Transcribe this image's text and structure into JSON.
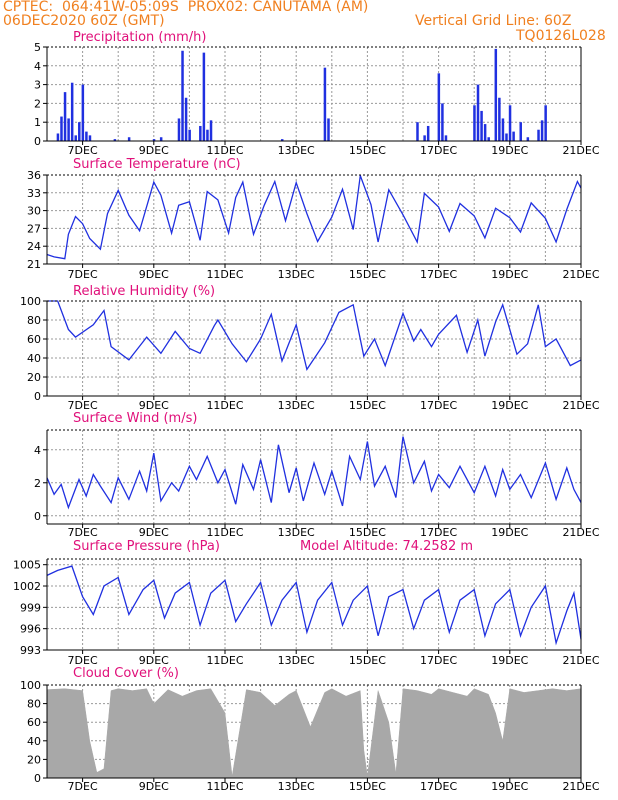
{
  "header": {
    "line1": "CPTEC:  064:41W-05:09S  PROX02: CANUTAMA (AM)",
    "line2": "06DEC2020 60Z (GMT)",
    "grid_note": "Vertical Grid Line: 60Z",
    "code": "TQ0126L028"
  },
  "colors": {
    "header": "#f08020",
    "title": "#e0107a",
    "series": "#2030e0",
    "cloud": "#a8a8a8",
    "grid": "#999999"
  },
  "x_ticks": [
    "7DEC",
    "9DEC",
    "11DEC",
    "13DEC",
    "15DEC",
    "17DEC",
    "19DEC",
    "21DEC"
  ],
  "chart_data": [
    {
      "type": "bar",
      "title": "Precipitation (mm/h)",
      "x_range_days": [
        6.0,
        21.0
      ],
      "ylim": [
        0,
        5
      ],
      "yticks": [
        0,
        1,
        2,
        3,
        4,
        5
      ],
      "x": [
        6.3,
        6.4,
        6.5,
        6.6,
        6.7,
        6.8,
        6.9,
        7.0,
        7.1,
        7.2,
        7.9,
        8.3,
        9.0,
        9.2,
        9.7,
        9.8,
        9.9,
        10.0,
        10.3,
        10.4,
        10.5,
        10.6,
        12.6,
        13.8,
        13.9,
        16.4,
        16.6,
        16.7,
        17.0,
        17.1,
        17.2,
        18.0,
        18.1,
        18.2,
        18.3,
        18.4,
        18.6,
        18.7,
        18.8,
        18.9,
        19.0,
        19.1,
        19.3,
        19.5,
        19.8,
        19.9,
        20.0
      ],
      "values": [
        0.4,
        1.3,
        2.6,
        1.2,
        3.1,
        0.3,
        1.0,
        3.0,
        0.5,
        0.3,
        0.1,
        0.2,
        0.1,
        0.2,
        1.2,
        4.8,
        2.3,
        0.6,
        0.8,
        4.7,
        0.6,
        1.1,
        0.1,
        3.9,
        1.2,
        1.0,
        0.3,
        0.8,
        3.6,
        2.0,
        0.3,
        1.9,
        3.0,
        1.6,
        0.9,
        0.2,
        4.9,
        2.3,
        1.2,
        0.4,
        1.9,
        0.5,
        1.0,
        0.2,
        0.6,
        1.1,
        1.9
      ]
    },
    {
      "type": "line",
      "title": "Surface Temperature (nC)",
      "x_range_days": [
        6.0,
        21.0
      ],
      "ylim": [
        21,
        36
      ],
      "yticks": [
        21,
        24,
        27,
        30,
        33,
        36
      ],
      "x": [
        6.0,
        6.2,
        6.5,
        6.6,
        6.8,
        7.0,
        7.2,
        7.5,
        7.7,
        8.0,
        8.3,
        8.6,
        9.0,
        9.2,
        9.5,
        9.7,
        10.0,
        10.3,
        10.5,
        10.8,
        11.1,
        11.3,
        11.5,
        11.8,
        12.1,
        12.4,
        12.7,
        13.0,
        13.3,
        13.6,
        14.0,
        14.3,
        14.6,
        14.8,
        15.1,
        15.3,
        15.6,
        16.0,
        16.4,
        16.6,
        17.0,
        17.3,
        17.6,
        18.0,
        18.3,
        18.6,
        19.0,
        19.3,
        19.6,
        20.0,
        20.3,
        20.6,
        20.9,
        21.0
      ],
      "values": [
        22.6,
        22.2,
        21.9,
        26.0,
        29.0,
        27.8,
        25.3,
        23.5,
        29.5,
        33.4,
        29.2,
        26.6,
        34.8,
        32.6,
        26.2,
        30.9,
        31.5,
        25.0,
        33.2,
        31.8,
        26.2,
        32.2,
        34.8,
        26.0,
        30.9,
        34.9,
        28.3,
        34.7,
        29.5,
        24.8,
        28.9,
        33.6,
        26.8,
        35.9,
        31.0,
        24.7,
        33.5,
        29.3,
        24.7,
        32.9,
        30.6,
        26.5,
        31.2,
        29.1,
        25.4,
        30.4,
        28.8,
        26.4,
        31.3,
        28.7,
        24.7,
        30.2,
        34.9,
        33.8
      ]
    },
    {
      "type": "line",
      "title": "Relative Humidity (%)",
      "x_range_days": [
        6.0,
        21.0
      ],
      "ylim": [
        0,
        100
      ],
      "yticks": [
        0,
        20,
        40,
        60,
        80,
        100
      ],
      "x": [
        6.0,
        6.3,
        6.6,
        6.8,
        7.3,
        7.6,
        7.8,
        8.3,
        8.8,
        9.2,
        9.6,
        10.0,
        10.3,
        10.7,
        10.8,
        11.2,
        11.6,
        12.0,
        12.3,
        12.6,
        13.0,
        13.3,
        13.8,
        14.2,
        14.6,
        14.9,
        15.2,
        15.5,
        16.0,
        16.3,
        16.5,
        16.8,
        17.0,
        17.5,
        17.8,
        18.1,
        18.3,
        18.6,
        18.8,
        19.2,
        19.5,
        19.8,
        20.0,
        20.3,
        20.7,
        21.0
      ],
      "values": [
        100,
        100,
        70,
        62,
        75,
        90,
        52,
        38,
        62,
        45,
        68,
        50,
        45,
        74,
        80,
        55,
        36,
        60,
        86,
        37,
        75,
        28,
        56,
        88,
        96,
        42,
        60,
        32,
        87,
        58,
        70,
        52,
        65,
        85,
        46,
        80,
        42,
        78,
        96,
        44,
        55,
        96,
        52,
        60,
        32,
        38
      ]
    },
    {
      "type": "line",
      "title": "Surface Wind (m/s)",
      "x_range_days": [
        6.0,
        21.0
      ],
      "ylim": [
        -0.5,
        5.2
      ],
      "yticks": [
        0,
        2,
        4
      ],
      "x": [
        6.0,
        6.2,
        6.4,
        6.6,
        6.9,
        7.1,
        7.3,
        7.5,
        7.8,
        8.0,
        8.3,
        8.6,
        8.8,
        9.0,
        9.2,
        9.5,
        9.7,
        10.0,
        10.2,
        10.5,
        10.8,
        11.0,
        11.3,
        11.5,
        11.8,
        12.0,
        12.3,
        12.5,
        12.8,
        13.0,
        13.2,
        13.5,
        13.8,
        14.0,
        14.3,
        14.5,
        14.8,
        15.0,
        15.2,
        15.5,
        15.8,
        16.0,
        16.3,
        16.6,
        16.8,
        17.0,
        17.3,
        17.6,
        18.0,
        18.3,
        18.6,
        18.8,
        19.0,
        19.3,
        19.6,
        20.0,
        20.3,
        20.6,
        20.8,
        21.0
      ],
      "values": [
        2.3,
        1.3,
        1.9,
        0.5,
        2.2,
        1.2,
        2.5,
        1.8,
        0.8,
        2.3,
        1.0,
        2.7,
        1.5,
        3.8,
        0.9,
        2.0,
        1.5,
        3.0,
        2.2,
        3.6,
        2.0,
        2.8,
        0.7,
        3.1,
        1.6,
        3.4,
        0.8,
        4.3,
        1.4,
        2.9,
        0.9,
        3.2,
        1.3,
        2.7,
        0.6,
        3.6,
        2.2,
        4.5,
        1.8,
        3.0,
        1.1,
        4.8,
        2.0,
        3.3,
        1.5,
        2.5,
        1.7,
        3.0,
        1.4,
        3.0,
        1.2,
        2.8,
        1.6,
        2.5,
        1.1,
        3.2,
        1.0,
        2.9,
        1.6,
        0.8
      ]
    },
    {
      "type": "line",
      "title": "Surface Pressure (hPa)",
      "annotation": "Model Altitude: 74.2582  m",
      "x_range_days": [
        6.0,
        21.0
      ],
      "ylim": [
        993,
        1005.8
      ],
      "yticks": [
        993,
        996,
        999,
        1002,
        1005
      ],
      "x": [
        6.0,
        6.3,
        6.7,
        7.0,
        7.3,
        7.6,
        8.0,
        8.3,
        8.7,
        9.0,
        9.3,
        9.6,
        10.0,
        10.3,
        10.6,
        11.0,
        11.3,
        11.6,
        12.0,
        12.3,
        12.6,
        13.0,
        13.3,
        13.6,
        14.0,
        14.3,
        14.6,
        15.0,
        15.3,
        15.6,
        16.0,
        16.3,
        16.6,
        17.0,
        17.3,
        17.6,
        18.0,
        18.3,
        18.6,
        19.0,
        19.3,
        19.6,
        20.0,
        20.3,
        20.6,
        20.8,
        21.0
      ],
      "values": [
        1003.5,
        1004.2,
        1004.8,
        1000.5,
        998.0,
        1002.0,
        1003.2,
        998.0,
        1001.5,
        1002.8,
        997.5,
        1001.0,
        1002.5,
        996.5,
        1001.0,
        1002.8,
        997.0,
        999.5,
        1002.5,
        996.5,
        1000.0,
        1002.5,
        995.5,
        1000.0,
        1002.5,
        996.5,
        1000.0,
        1002.0,
        995.0,
        1000.5,
        1001.5,
        996.0,
        1000.0,
        1001.5,
        995.5,
        1000.0,
        1001.5,
        995.0,
        999.5,
        1001.5,
        995.0,
        999.0,
        1002.0,
        994.0,
        998.5,
        1001.0,
        994.5
      ]
    },
    {
      "type": "area",
      "title": "Cloud Cover (%)",
      "x_range_days": [
        6.0,
        21.0
      ],
      "ylim": [
        0,
        100
      ],
      "yticks": [
        0,
        20,
        40,
        60,
        80,
        100
      ],
      "x": [
        6.0,
        6.5,
        7.0,
        7.2,
        7.4,
        7.6,
        7.8,
        8.0,
        8.4,
        8.8,
        9.0,
        9.4,
        9.8,
        10.2,
        10.6,
        11.0,
        11.2,
        11.6,
        12.0,
        12.4,
        12.8,
        13.0,
        13.4,
        13.8,
        14.0,
        14.4,
        14.8,
        14.9,
        15.0,
        15.3,
        15.6,
        15.8,
        16.0,
        16.4,
        16.8,
        17.0,
        17.4,
        17.8,
        18.0,
        18.4,
        18.6,
        18.8,
        19.0,
        19.4,
        19.8,
        20.2,
        20.6,
        21.0
      ],
      "values": [
        95,
        96,
        94,
        40,
        6,
        10,
        94,
        96,
        94,
        96,
        80,
        95,
        88,
        94,
        96,
        70,
        2,
        95,
        92,
        78,
        90,
        94,
        55,
        92,
        96,
        88,
        94,
        30,
        2,
        94,
        60,
        5,
        96,
        94,
        90,
        96,
        92,
        88,
        96,
        90,
        70,
        40,
        96,
        92,
        94,
        96,
        94,
        96
      ]
    }
  ]
}
